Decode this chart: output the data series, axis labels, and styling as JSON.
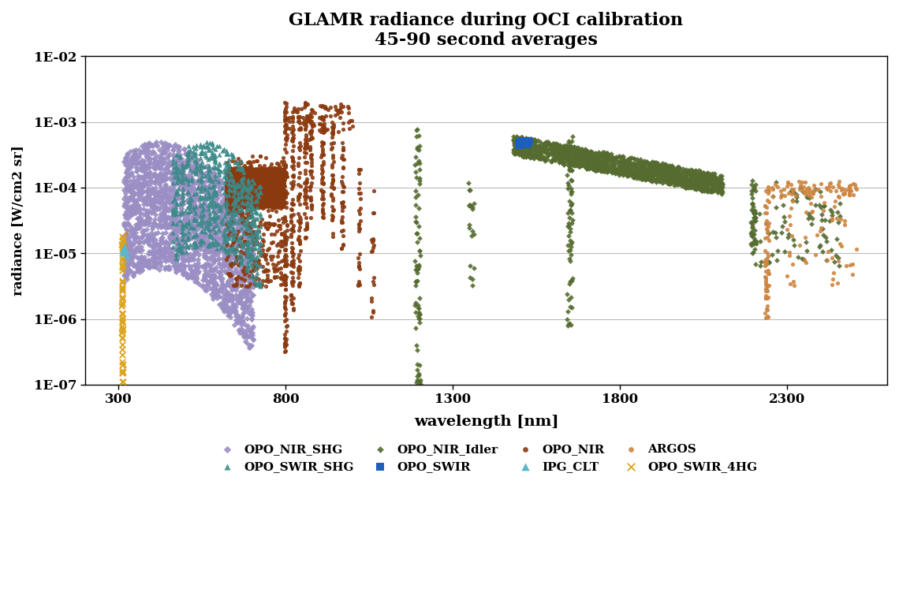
{
  "title_line1": "GLAMR radiance during OCI calibration",
  "title_line2": "45-90 second averages",
  "xlabel": "wavelength [nm]",
  "ylabel": "radiance [W/cm2 sr]",
  "xlim": [
    200,
    2600
  ],
  "ylim": [
    1e-07,
    0.01
  ],
  "xticks": [
    300,
    800,
    1300,
    1800,
    2300
  ],
  "ytick_vals": [
    1e-07,
    1e-06,
    1e-05,
    0.0001,
    0.001,
    0.01
  ],
  "ytick_labels": [
    "1E-07",
    "1E-06",
    "1E-05",
    "1E-04",
    "1E-03",
    "1E-02"
  ],
  "colors": {
    "OPO_NIR_SHG": "#9B8EC4",
    "OPO_SWIR_SHG": "#3D8A8A",
    "OPO_NIR_Idler": "#556B2F",
    "OPO_SWIR": "#1E5FBB",
    "OPO_NIR": "#8B3A0F",
    "IPG_CLT": "#5BB8CC",
    "ARGOS": "#CD853F",
    "OPO_SWIR_4HG": "#DAA520"
  }
}
